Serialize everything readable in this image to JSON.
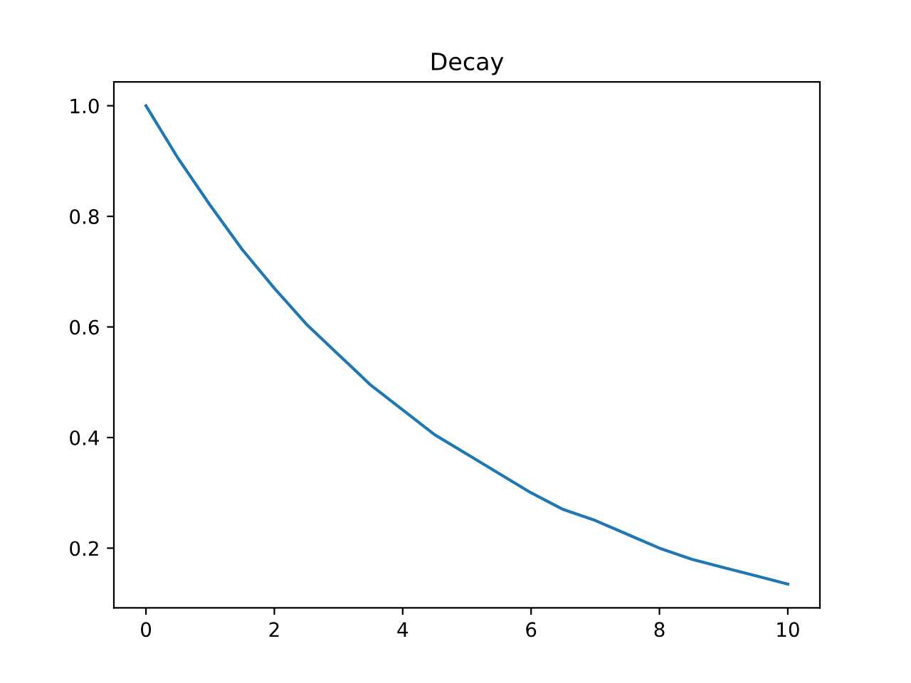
{
  "chart_data": {
    "type": "line",
    "title": "Decay",
    "x": [
      0,
      0.5,
      1,
      1.5,
      2,
      2.5,
      3,
      3.5,
      4,
      4.5,
      5,
      5.5,
      6,
      6.5,
      7,
      7.5,
      8,
      8.5,
      9,
      9.5,
      10
    ],
    "series": [
      {
        "color": "#1f77b4",
        "values": [
          1.0,
          0.905,
          0.82,
          0.74,
          0.67,
          0.605,
          0.55,
          0.495,
          0.45,
          0.405,
          0.37,
          0.335,
          0.3,
          0.27,
          0.25,
          0.225,
          0.2,
          0.18,
          0.165,
          0.15,
          0.135
        ]
      }
    ],
    "xlim": [
      -0.5,
      10.5
    ],
    "ylim": [
      0.092,
      1.043
    ],
    "xticks": [
      0,
      2,
      4,
      6,
      8,
      10
    ],
    "yticks": [
      {
        "value": 0.2,
        "label": "0.2"
      },
      {
        "value": 0.4,
        "label": "0.4"
      },
      {
        "value": 0.6,
        "label": "0.6"
      },
      {
        "value": 0.8,
        "label": "0.8"
      },
      {
        "value": 1.0,
        "label": "1.0"
      }
    ],
    "grid": false,
    "legend": false
  }
}
